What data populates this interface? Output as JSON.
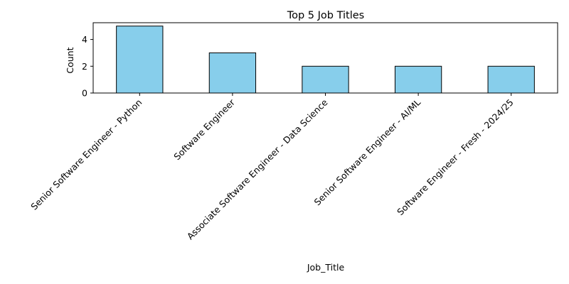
{
  "chart_data": {
    "type": "bar",
    "title": "Top 5 Job Titles",
    "xlabel": "Job_Title",
    "ylabel": "Count",
    "categories": [
      "Senior Software Engineer - Python",
      "Software Engineer",
      "Associate Software Engineer - Data Science",
      "Senior Software Engineer - AI/ML",
      "Software Engineer - Fresh - 2024/25"
    ],
    "values": [
      5,
      3,
      2,
      2,
      2
    ],
    "ylim": [
      0,
      5.25
    ],
    "yticks": [
      0,
      2,
      4
    ],
    "grid": false,
    "legend": "none",
    "bar_color": "#87CEEB",
    "bar_edge_color": "#000000"
  }
}
